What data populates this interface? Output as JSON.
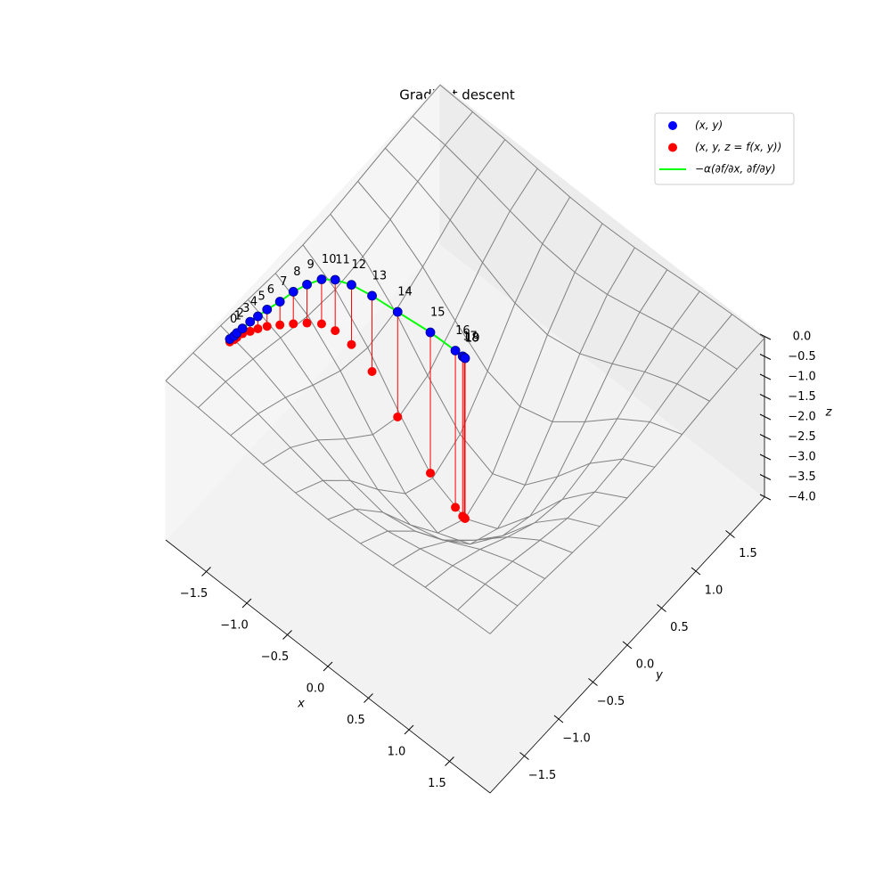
{
  "chart_data": {
    "type": "surface3d",
    "title": "Gradient descent",
    "xlabel": "x",
    "ylabel": "y",
    "zlabel": "z",
    "xlim": [
      -2,
      2
    ],
    "ylim": [
      -2,
      2
    ],
    "zlim": [
      -4,
      0
    ],
    "xticks": [
      {
        "value": -1.5,
        "label": "−1.5"
      },
      {
        "value": -1.0,
        "label": "−1.0"
      },
      {
        "value": -0.5,
        "label": "−0.5"
      },
      {
        "value": 0,
        "label": "0.0"
      },
      0.5,
      {
        "value": 1.0,
        "label": "1.0"
      },
      1.5
    ],
    "yticks": [
      {
        "value": -1.5,
        "label": "−1.5"
      },
      {
        "value": -1.0,
        "label": "−1.0"
      },
      {
        "value": -0.5,
        "label": "−0.5"
      },
      {
        "value": 0,
        "label": "0.0"
      },
      0.5,
      {
        "value": 1.0,
        "label": "1.0"
      },
      1.5
    ],
    "zticks": [
      {
        "value": 0,
        "label": "0.0"
      },
      {
        "value": -0.5,
        "label": "−0.5"
      },
      {
        "value": -1.0,
        "label": "−1.0"
      },
      {
        "value": -1.5,
        "label": "−1.5"
      },
      {
        "value": -2.0,
        "label": "−2.0"
      },
      {
        "value": -2.5,
        "label": "−2.5"
      },
      {
        "value": -3.0,
        "label": "−3.0"
      },
      {
        "value": -3.5,
        "label": "−3.5"
      },
      {
        "value": -4.0,
        "label": "−4.0"
      }
    ],
    "legend_loc": "upper right",
    "series": [
      {
        "name": "(x, y)",
        "color": "#0000ff"
      },
      {
        "name": "(x, y, z = f(x, y))",
        "color": "#ff0000"
      },
      {
        "name": "−α(∂f/∂x, ∂f/∂y)",
        "color": "#00ff00"
      }
    ],
    "points": {
      "labels": [
        "0",
        "1",
        "2",
        "3",
        "4",
        "5",
        "6",
        "7",
        "8",
        "9",
        "10",
        "11",
        "12",
        "13",
        "14",
        "15",
        "16",
        "17",
        "18",
        "19"
      ],
      "x": [
        -1.81,
        -1.8,
        -1.8,
        -1.79,
        -1.78,
        -1.76,
        -1.74,
        -1.7,
        -1.67,
        -1.62,
        -1.55,
        -1.45,
        -1.3,
        -1.08,
        -0.79,
        -0.42,
        -0.12,
        -0.03,
        -0.01,
        0.0
      ],
      "y": [
        -1.29,
        -1.24,
        -1.2,
        -1.13,
        -1.03,
        -0.94,
        -0.83,
        -0.69,
        -0.53,
        -0.39,
        -0.26,
        -0.18,
        -0.12,
        -0.08,
        -0.05,
        -0.01,
        0.0,
        0.0,
        0.0,
        0.0
      ],
      "z": [
        -0.07,
        -0.09,
        -0.11,
        -0.13,
        -0.24,
        -0.31,
        -0.42,
        -0.58,
        -0.8,
        -0.96,
        -1.11,
        -1.27,
        -1.49,
        -1.89,
        -2.62,
        -3.51,
        -3.91,
        -3.99,
        -4.0,
        -4.0
      ]
    },
    "surface": {
      "color": "#808080",
      "x": [
        -2,
        -1.6,
        -1.2,
        -0.8,
        -0.4,
        0,
        0.4,
        0.8,
        1.2,
        1.6,
        2
      ],
      "y": [
        -2,
        -1.6,
        -1.2,
        -0.8,
        -0.4,
        0,
        0.4,
        0.8,
        1.2,
        1.6,
        2
      ],
      "z": [
        [
          -0.03,
          -0.07,
          -0.13,
          -0.22,
          -0.3,
          -0.33,
          -0.3,
          -0.22,
          -0.13,
          -0.07,
          -0.03
        ],
        [
          -0.07,
          -0.16,
          -0.33,
          -0.54,
          -0.73,
          -0.81,
          -0.73,
          -0.54,
          -0.33,
          -0.16,
          -0.07
        ],
        [
          -0.13,
          -0.33,
          -0.66,
          -1.09,
          -1.47,
          -1.63,
          -1.47,
          -1.09,
          -0.66,
          -0.33,
          -0.13
        ],
        [
          -0.22,
          -0.54,
          -1.09,
          -1.8,
          -2.43,
          -2.68,
          -2.43,
          -1.8,
          -1.09,
          -0.54,
          -0.22
        ],
        [
          -0.3,
          -0.73,
          -1.47,
          -2.43,
          -3.27,
          -3.62,
          -3.27,
          -2.43,
          -1.47,
          -0.73,
          -0.3
        ],
        [
          -0.33,
          -0.81,
          -1.63,
          -2.68,
          -3.62,
          -4.0,
          -3.62,
          -2.68,
          -1.63,
          -0.81,
          -0.33
        ],
        [
          -0.3,
          -0.73,
          -1.47,
          -2.43,
          -3.27,
          -3.62,
          -3.27,
          -2.43,
          -1.47,
          -0.73,
          -0.3
        ],
        [
          -0.22,
          -0.54,
          -1.09,
          -1.8,
          -2.43,
          -2.68,
          -2.43,
          -1.8,
          -1.09,
          -0.54,
          -0.22
        ],
        [
          -0.13,
          -0.33,
          -0.66,
          -1.09,
          -1.47,
          -1.63,
          -1.47,
          -1.09,
          -0.66,
          -0.33,
          -0.13
        ],
        [
          -0.07,
          -0.16,
          -0.33,
          -0.54,
          -0.73,
          -0.81,
          -0.73,
          -0.54,
          -0.33,
          -0.16,
          -0.07
        ],
        [
          -0.03,
          -0.07,
          -0.13,
          -0.22,
          -0.3,
          -0.33,
          -0.3,
          -0.22,
          -0.13,
          -0.07,
          -0.03
        ]
      ]
    }
  }
}
